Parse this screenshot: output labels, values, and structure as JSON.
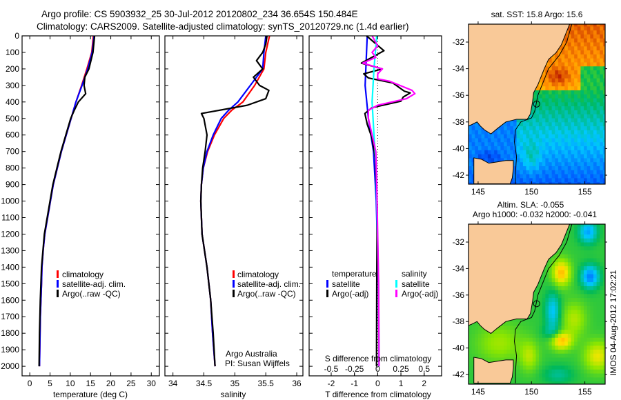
{
  "title": {
    "line1": "Argo profile: CS 5903932_25 30-Jul-2012 20120802_234 36.654S 150.484E",
    "line2": "Climatology: CARS2009. Satellite-adjusted climatology: synTS_20120729.nc (1.4d earlier)"
  },
  "side_stamp": "IMOS 04-Aug-2012 17:02:21",
  "chart_data": [
    {
      "id": "temperature",
      "type": "line",
      "xlabel": "temperature (deg C)",
      "ylabel": "depth",
      "xlim": [
        -1.9,
        32
      ],
      "ylim": [
        2058,
        0
      ],
      "xticks": [
        0,
        5,
        10,
        15,
        20,
        25,
        30
      ],
      "yticks": [
        0,
        100,
        200,
        300,
        400,
        500,
        600,
        700,
        800,
        900,
        1000,
        1100,
        1200,
        1300,
        1400,
        1500,
        1600,
        1700,
        1800,
        1900,
        2000
      ],
      "legend": [
        "climatology",
        "satellite-adj. clim.",
        "Argo(..raw -QC)"
      ],
      "series": [
        {
          "name": "climatology",
          "color": "#ff0000",
          "depth": [
            0,
            100,
            200,
            300,
            400,
            500,
            600,
            700,
            800,
            900,
            1000,
            1100,
            1200,
            1300,
            1400,
            1500,
            1700,
            2000
          ],
          "values": [
            15.7,
            15.3,
            14.1,
            12.8,
            11.4,
            10.2,
            9.0,
            7.8,
            6.8,
            5.8,
            5.1,
            4.4,
            3.7,
            3.3,
            3.0,
            2.9,
            2.6,
            2.4
          ]
        },
        {
          "name": "satellite-adj. clim.",
          "color": "#0000ff",
          "depth": [
            0,
            100,
            200,
            300,
            400,
            500,
            600,
            700,
            800,
            900,
            1000,
            1100,
            1200,
            1300,
            1400,
            1500,
            1700,
            2000
          ],
          "values": [
            15.9,
            15.4,
            14.3,
            12.9,
            11.4,
            10.2,
            9.0,
            7.8,
            6.8,
            5.8,
            5.1,
            4.4,
            3.7,
            3.3,
            3.0,
            2.9,
            2.6,
            2.4
          ]
        },
        {
          "name": "Argo(..raw -QC)",
          "color": "#000000",
          "depth": [
            0,
            100,
            200,
            250,
            300,
            350,
            400,
            450,
            500,
            600,
            700,
            800,
            900,
            1000,
            1200,
            1400,
            1600,
            1800,
            2000
          ],
          "values": [
            16.0,
            15.6,
            14.6,
            13.6,
            13.4,
            13.8,
            12.0,
            11.0,
            10.1,
            8.9,
            7.7,
            6.7,
            5.7,
            5.0,
            3.6,
            2.9,
            2.6,
            2.4,
            2.3
          ]
        }
      ]
    },
    {
      "id": "salinity",
      "type": "line",
      "xlabel": "salinity",
      "xlim": [
        33.87,
        36.1
      ],
      "ylim": [
        2058,
        0
      ],
      "xticks": [
        34,
        34.5,
        35,
        35.5,
        36
      ],
      "legend": [
        "climatology",
        "satellite-adj. clim.",
        "Argo(..raw -QC)"
      ],
      "annotation": [
        "Argo Australia",
        "PI: Susan Wijffels"
      ],
      "series": [
        {
          "name": "climatology",
          "color": "#ff0000",
          "depth": [
            0,
            100,
            200,
            300,
            400,
            450,
            500,
            600,
            700,
            800,
            900,
            1000,
            1100,
            1200,
            1400,
            1600,
            1800,
            2000
          ],
          "values": [
            35.56,
            35.5,
            35.47,
            35.32,
            35.13,
            34.95,
            34.82,
            34.67,
            34.56,
            34.49,
            34.46,
            34.45,
            34.46,
            34.47,
            34.55,
            34.61,
            34.64,
            34.68
          ]
        },
        {
          "name": "satellite-adj. clim.",
          "color": "#0000ff",
          "depth": [
            0,
            100,
            200,
            300,
            400,
            450,
            500,
            600,
            700,
            800,
            900,
            1000,
            1100,
            1200,
            1400,
            1600,
            1800,
            2000
          ],
          "values": [
            35.5,
            35.47,
            35.45,
            35.25,
            35.05,
            34.9,
            34.78,
            34.65,
            34.55,
            34.49,
            34.46,
            34.45,
            34.46,
            34.47,
            34.55,
            34.61,
            34.64,
            34.68
          ]
        },
        {
          "name": "Argo(..raw -QC)",
          "color": "#000000",
          "depth": [
            0,
            50,
            100,
            150,
            200,
            250,
            300,
            330,
            380,
            420,
            470,
            500,
            600,
            700,
            800,
            900,
            1000,
            1200,
            1400,
            1600,
            1800,
            2000
          ],
          "values": [
            35.52,
            35.5,
            35.45,
            35.35,
            35.45,
            35.3,
            35.4,
            35.55,
            35.5,
            35.2,
            34.46,
            34.5,
            34.55,
            34.52,
            34.48,
            34.46,
            34.45,
            34.47,
            34.55,
            34.61,
            34.65,
            34.68
          ]
        }
      ]
    },
    {
      "id": "differences",
      "type": "line",
      "xlabel": "T difference from climatology",
      "xlabel_s": "S difference from climatology",
      "xlim": [
        -2.95,
        2.75
      ],
      "ylim": [
        2058,
        0
      ],
      "xticks": [
        -2,
        -1,
        0,
        1,
        2
      ],
      "xticks_s": [
        -0.5,
        -0.25,
        0,
        0.25,
        0.5
      ],
      "legend_headers": [
        "temperature",
        "salinity"
      ],
      "legend_t": [
        "satellite",
        "Argo(-adj)"
      ],
      "legend_s": [
        "satellite",
        "Argo(-adj)"
      ],
      "series": [
        {
          "name": "temperature satellite",
          "unit": "T",
          "color": "#0000ff",
          "depth": [
            0,
            100,
            300,
            500,
            700,
            1000,
            1500,
            2000
          ],
          "values": [
            -0.45,
            -0.48,
            -0.54,
            -0.4,
            -0.18,
            -0.06,
            0.03,
            0.06
          ]
        },
        {
          "name": "temperature Argo(-adj)",
          "unit": "T",
          "color": "#000000",
          "depth": [
            0,
            90,
            165,
            200,
            230,
            255,
            285,
            335,
            345,
            370,
            395,
            435,
            470,
            535,
            615,
            740,
            1030,
            1500,
            2000
          ],
          "values": [
            -0.48,
            0.27,
            -0.7,
            0.2,
            -0.6,
            -0.4,
            0.65,
            1.15,
            1.4,
            1.1,
            1.0,
            -0.25,
            -0.55,
            -0.45,
            -0.25,
            -0.1,
            -0.02,
            -0.04,
            -0.05
          ]
        },
        {
          "name": "salinity satellite",
          "unit": "S",
          "color": "#00ffff",
          "depth": [
            0,
            200,
            400,
            600,
            800,
            1000,
            1500,
            2000
          ],
          "values": [
            -0.01,
            -0.04,
            -0.06,
            -0.04,
            -0.015,
            -0.01,
            0.01,
            0.015
          ]
        },
        {
          "name": "salinity Argo(-adj)",
          "unit": "S",
          "color": "#ff00ff",
          "depth": [
            0,
            60,
            100,
            130,
            165,
            200,
            230,
            260,
            275,
            300,
            330,
            350,
            380,
            420,
            450,
            500,
            600,
            700,
            900,
            1500,
            2000
          ],
          "values": [
            -0.06,
            0,
            -0.06,
            -0.02,
            -0.16,
            0.05,
            0,
            0,
            0.13,
            0.24,
            0.37,
            0.4,
            0.31,
            0,
            -0.1,
            -0.1,
            -0.06,
            -0.02,
            -0.01,
            0.01,
            0.015
          ]
        }
      ]
    },
    {
      "id": "sst_map",
      "type": "heatmap",
      "title": "sat. SST: 15.8 Argo: 15.6",
      "xlim": [
        144.1,
        156.9
      ],
      "ylim": [
        -42.65,
        -30.6
      ],
      "xticks": [
        145,
        150,
        155
      ],
      "yticks": [
        -32,
        -34,
        -36,
        -38,
        -40,
        -42
      ],
      "argo_position": [
        150.484,
        -36.654
      ]
    },
    {
      "id": "sla_map",
      "type": "heatmap",
      "title": [
        "Altim. SLA: -0.055",
        "Argo h1000: -0.032 h2000: -0.041"
      ],
      "xlim": [
        144.1,
        156.9
      ],
      "ylim": [
        -42.65,
        -30.6
      ],
      "xticks": [
        145,
        150,
        155
      ],
      "yticks": [
        -32,
        -34,
        -36,
        -38,
        -40,
        -42
      ],
      "argo_position": [
        150.484,
        -36.654
      ]
    }
  ]
}
